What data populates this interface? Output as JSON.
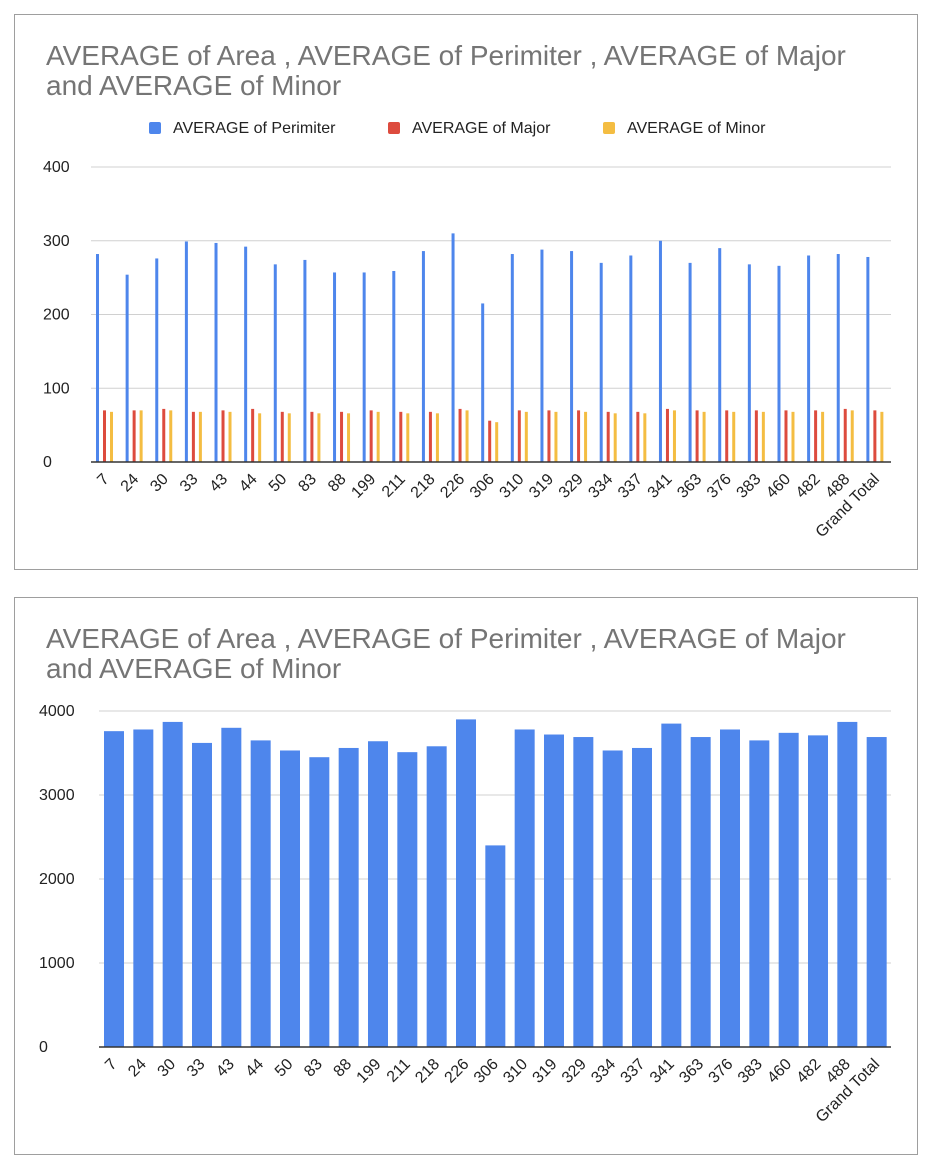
{
  "charts": [
    {
      "title": "AVERAGE of Area , AVERAGE of Perimiter , AVERAGE of Major  and AVERAGE of Minor",
      "legend": [
        {
          "label": "AVERAGE of Perimiter",
          "color": "#4e86ec"
        },
        {
          "label": "AVERAGE of Major",
          "color": "#dd4b3e"
        },
        {
          "label": "AVERAGE of Minor",
          "color": "#f4bd42"
        }
      ]
    },
    {
      "title": "AVERAGE of Area , AVERAGE of Perimiter , AVERAGE of Major  and AVERAGE of Minor"
    }
  ],
  "chart_data": [
    {
      "type": "bar",
      "title": "AVERAGE of Area , AVERAGE of Perimiter , AVERAGE of Major  and AVERAGE of Minor",
      "legend_position": "top",
      "grid": true,
      "ylim": [
        0,
        400
      ],
      "yticks": [
        0,
        100,
        200,
        300,
        400
      ],
      "categories": [
        "7",
        "24",
        "30",
        "33",
        "43",
        "44",
        "50",
        "83",
        "88",
        "199",
        "211",
        "218",
        "226",
        "306",
        "310",
        "319",
        "329",
        "334",
        "337",
        "341",
        "363",
        "376",
        "383",
        "460",
        "482",
        "488",
        "Grand Total"
      ],
      "series": [
        {
          "name": "AVERAGE of Perimiter",
          "color": "#4e86ec",
          "values": [
            282,
            254,
            276,
            299,
            297,
            292,
            268,
            274,
            257,
            257,
            259,
            286,
            310,
            215,
            282,
            288,
            286,
            270,
            280,
            300,
            270,
            290,
            268,
            266,
            280,
            282,
            278
          ]
        },
        {
          "name": "AVERAGE of Major",
          "color": "#dd4b3e",
          "values": [
            70,
            70,
            72,
            68,
            70,
            72,
            68,
            68,
            68,
            70,
            68,
            68,
            72,
            56,
            70,
            70,
            70,
            68,
            68,
            72,
            70,
            70,
            70,
            70,
            70,
            72,
            70
          ]
        },
        {
          "name": "AVERAGE of Minor",
          "color": "#f4bd42",
          "values": [
            68,
            70,
            70,
            68,
            68,
            66,
            66,
            66,
            66,
            68,
            66,
            66,
            70,
            54,
            68,
            68,
            68,
            66,
            66,
            70,
            68,
            68,
            68,
            68,
            68,
            70,
            68
          ]
        }
      ]
    },
    {
      "type": "bar",
      "title": "AVERAGE of Area , AVERAGE of Perimiter , AVERAGE of Major  and AVERAGE of Minor",
      "grid": true,
      "ylim": [
        0,
        4000
      ],
      "yticks": [
        0,
        1000,
        2000,
        3000,
        4000
      ],
      "categories": [
        "7",
        "24",
        "30",
        "33",
        "43",
        "44",
        "50",
        "83",
        "88",
        "199",
        "211",
        "218",
        "226",
        "306",
        "310",
        "319",
        "329",
        "334",
        "337",
        "341",
        "363",
        "376",
        "383",
        "460",
        "482",
        "488",
        "Grand Total"
      ],
      "series": [
        {
          "color": "#4e86ec",
          "values": [
            3760,
            3780,
            3870,
            3620,
            3800,
            3650,
            3530,
            3450,
            3560,
            3640,
            3510,
            3580,
            3900,
            2400,
            3780,
            3720,
            3690,
            3530,
            3560,
            3850,
            3690,
            3780,
            3650,
            3740,
            3710,
            3870,
            3690
          ]
        }
      ]
    }
  ]
}
